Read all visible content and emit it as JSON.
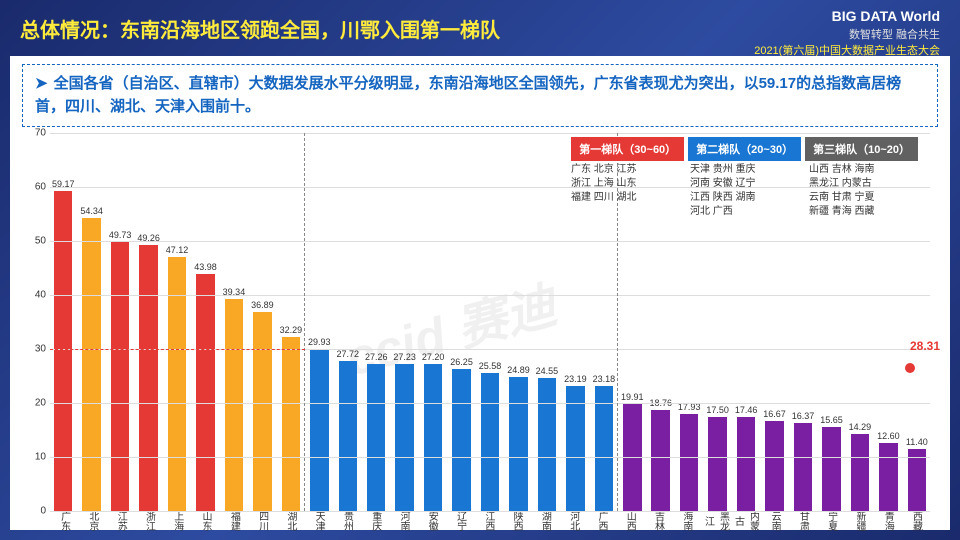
{
  "header": {
    "title": "总体情况：东南沿海地区领跑全国，川鄂入围第一梯队",
    "brand": "BIG DATA World",
    "brand_sub": "中国大数据产业生态大会",
    "tagline": "数智转型 融合共生",
    "event": "2021(第六届)中国大数据产业生态大会"
  },
  "description": "全国各省（自治区、直辖市）大数据发展水平分级明显，东南沿海地区全国领先，广东省表现尤为突出，以59.17的总指数高居榜首，四川、湖北、天津入围前十。",
  "chart": {
    "ylim": [
      0,
      70
    ],
    "ytick_step": 10,
    "tiers": [
      {
        "label": "第一梯队（30~60）",
        "color": "#e53935",
        "members": "广东 北京 江苏\n浙江 上海 山东\n福建 四川 湖北"
      },
      {
        "label": "第二梯队（20~30）",
        "color": "#1976d2",
        "members": "天津 贵州 重庆\n河南 安徽 辽宁\n江西 陕西 湖南\n河北 广西"
      },
      {
        "label": "第三梯队（10~20）",
        "color": "#616161",
        "members": "山西 吉林 海南\n黑龙江 内蒙古\n云南 甘肃 宁夏\n新疆 青海 西藏"
      }
    ],
    "bars": [
      {
        "name": "广东",
        "value": 59.17,
        "color": "#e53935"
      },
      {
        "name": "北京",
        "value": 54.34,
        "color": "#f9a825"
      },
      {
        "name": "江苏",
        "value": 49.73,
        "color": "#e53935"
      },
      {
        "name": "浙江",
        "value": 49.26,
        "color": "#e53935"
      },
      {
        "name": "上海",
        "value": 47.12,
        "color": "#f9a825"
      },
      {
        "name": "山东",
        "value": 43.98,
        "color": "#e53935"
      },
      {
        "name": "福建",
        "value": 39.34,
        "color": "#f9a825"
      },
      {
        "name": "四川",
        "value": 36.89,
        "color": "#f9a825"
      },
      {
        "name": "湖北",
        "value": 32.29,
        "color": "#f9a825"
      },
      {
        "name": "天津",
        "value": 29.93,
        "color": "#1976d2"
      },
      {
        "name": "贵州",
        "value": 27.72,
        "color": "#1976d2"
      },
      {
        "name": "重庆",
        "value": 27.26,
        "color": "#1976d2"
      },
      {
        "name": "河南",
        "value": 27.23,
        "color": "#1976d2"
      },
      {
        "name": "安徽",
        "value": 27.2,
        "color": "#1976d2"
      },
      {
        "name": "辽宁",
        "value": 26.25,
        "color": "#1976d2"
      },
      {
        "name": "江西",
        "value": 25.58,
        "color": "#1976d2"
      },
      {
        "name": "陕西",
        "value": 24.89,
        "color": "#1976d2"
      },
      {
        "name": "湖南",
        "value": 24.55,
        "color": "#1976d2"
      },
      {
        "name": "河北",
        "value": 23.19,
        "color": "#1976d2"
      },
      {
        "name": "广西",
        "value": 23.18,
        "color": "#1976d2"
      },
      {
        "name": "山西",
        "value": 19.91,
        "color": "#7b1fa2"
      },
      {
        "name": "吉林",
        "value": 18.76,
        "color": "#7b1fa2"
      },
      {
        "name": "海南",
        "value": 17.93,
        "color": "#7b1fa2"
      },
      {
        "name": "黑龙江",
        "value": 17.5,
        "color": "#7b1fa2"
      },
      {
        "name": "内蒙古",
        "value": 17.46,
        "color": "#7b1fa2"
      },
      {
        "name": "云南",
        "value": 16.67,
        "color": "#7b1fa2"
      },
      {
        "name": "甘肃",
        "value": 16.37,
        "color": "#7b1fa2"
      },
      {
        "name": "宁夏",
        "value": 15.65,
        "color": "#7b1fa2"
      },
      {
        "name": "新疆",
        "value": 14.29,
        "color": "#7b1fa2"
      },
      {
        "name": "青海",
        "value": 12.6,
        "color": "#7b1fa2"
      },
      {
        "name": "西藏",
        "value": 11.4,
        "color": "#7b1fa2"
      }
    ],
    "average": {
      "value": 28.31,
      "color": "#e53935"
    },
    "watermark": "ccid 赛迪"
  }
}
